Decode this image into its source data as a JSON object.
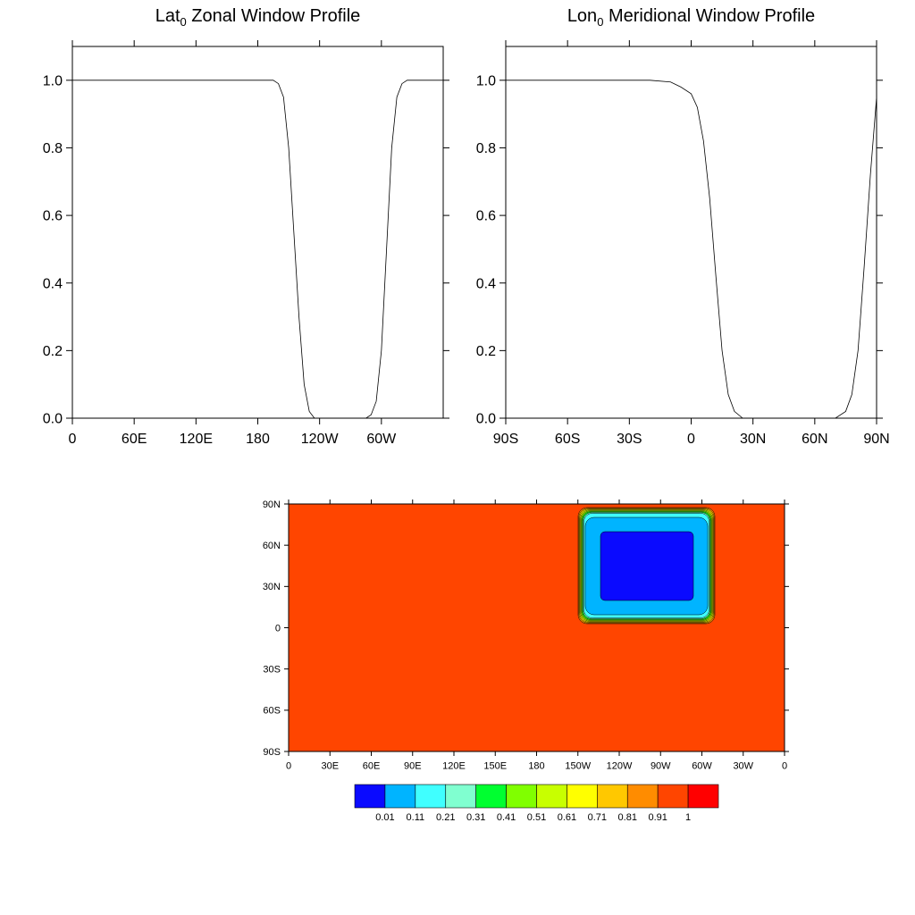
{
  "chart_data": [
    {
      "type": "line",
      "title": {
        "main": "Lat",
        "sub": "0",
        "rest": " Zonal Window Profile"
      },
      "x": [
        0,
        195,
        200,
        205,
        210,
        215,
        220,
        225,
        230,
        235,
        285,
        290,
        295,
        300,
        305,
        310,
        315,
        320,
        325,
        360
      ],
      "values": [
        1,
        1,
        0.99,
        0.95,
        0.8,
        0.55,
        0.3,
        0.1,
        0.02,
        0,
        0,
        0.01,
        0.05,
        0.2,
        0.5,
        0.8,
        0.95,
        0.99,
        1,
        1
      ],
      "color": "#000000",
      "xlim": [
        0,
        360
      ],
      "xticks": [
        0,
        {
          "value": 60,
          "label": "60E"
        },
        {
          "value": 120,
          "label": "120E"
        },
        180,
        {
          "value": 240,
          "label": "120W"
        },
        {
          "value": 300,
          "label": "60W"
        }
      ],
      "ylim": [
        0,
        1.1
      ],
      "yticks": [
        {
          "value": 0,
          "label": "0.0"
        },
        0.2,
        0.4,
        0.6,
        0.8,
        {
          "value": 1,
          "label": "1.0"
        }
      ]
    },
    {
      "type": "line",
      "title": {
        "main": "Lon",
        "sub": "0",
        "rest": " Meridional Window Profile"
      },
      "x": [
        -90,
        -20,
        -10,
        -5,
        0,
        3,
        6,
        9,
        12,
        15,
        18,
        21,
        25,
        70,
        75,
        78,
        81,
        84,
        87,
        90
      ],
      "values": [
        1,
        1,
        0.995,
        0.98,
        0.96,
        0.92,
        0.82,
        0.65,
        0.42,
        0.2,
        0.07,
        0.02,
        0,
        0,
        0.02,
        0.07,
        0.2,
        0.45,
        0.72,
        0.95
      ],
      "color": "#000000",
      "xlim": [
        -90,
        90
      ],
      "xticks": [
        {
          "value": -90,
          "label": "90S"
        },
        {
          "value": -60,
          "label": "60S"
        },
        {
          "value": -30,
          "label": "30S"
        },
        0,
        {
          "value": 30,
          "label": "30N"
        },
        {
          "value": 60,
          "label": "60N"
        },
        {
          "value": 90,
          "label": "90N"
        }
      ],
      "ylim": [
        0,
        1.1
      ],
      "yticks": [
        {
          "value": 0,
          "label": "0.0"
        },
        0.2,
        0.4,
        0.6,
        0.8,
        {
          "value": 1,
          "label": "1.0"
        }
      ]
    },
    {
      "type": "contour",
      "xlim": [
        0,
        360
      ],
      "xticks": [
        0,
        {
          "value": 30,
          "label": "30E"
        },
        {
          "value": 60,
          "label": "60E"
        },
        {
          "value": 90,
          "label": "90E"
        },
        {
          "value": 120,
          "label": "120E"
        },
        {
          "value": 150,
          "label": "150E"
        },
        180,
        {
          "value": 210,
          "label": "150W"
        },
        {
          "value": 240,
          "label": "120W"
        },
        {
          "value": 270,
          "label": "90W"
        },
        {
          "value": 300,
          "label": "60W"
        },
        {
          "value": 330,
          "label": "30W"
        },
        {
          "value": 360,
          "label": "0"
        }
      ],
      "ylim": [
        -90,
        90
      ],
      "yticks": [
        {
          "value": -90,
          "label": "90S"
        },
        {
          "value": -60,
          "label": "60S"
        },
        {
          "value": -30,
          "label": "30S"
        },
        0,
        {
          "value": 30,
          "label": "30N"
        },
        {
          "value": 60,
          "label": "60N"
        },
        {
          "value": 90,
          "label": "90N"
        }
      ],
      "levels": [
        0.01,
        0.11,
        0.21,
        0.31,
        0.41,
        0.51,
        0.61,
        0.71,
        0.81,
        0.91,
        1
      ],
      "colors": [
        "#0a0aff",
        "#00b4ff",
        "#40ffff",
        "#80ffd0",
        "#00ff30",
        "#80ff00",
        "#c8ff00",
        "#ffff00",
        "#ffc800",
        "#ff8c00",
        "#ff4500",
        "#ff0000"
      ]
    }
  ]
}
